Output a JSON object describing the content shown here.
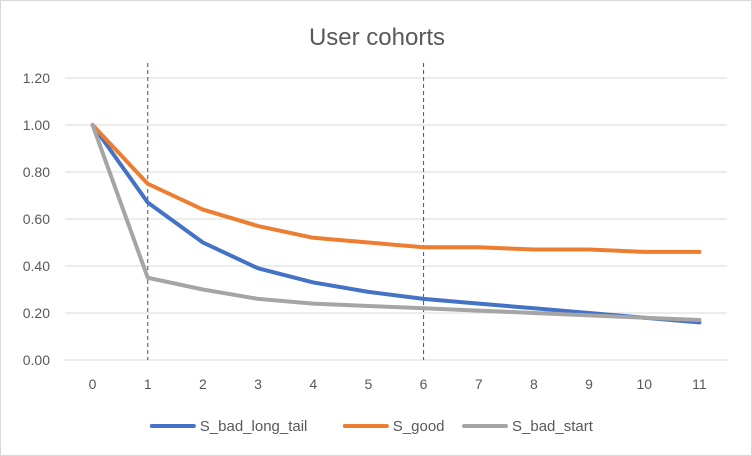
{
  "chart_data": {
    "type": "line",
    "title": "User cohorts",
    "xlabel": "",
    "ylabel": "",
    "x": [
      0,
      1,
      2,
      3,
      4,
      5,
      6,
      7,
      8,
      9,
      10,
      11
    ],
    "ylim": [
      0,
      1.2
    ],
    "yticks": [
      "0.00",
      "0.20",
      "0.40",
      "0.60",
      "0.80",
      "1.00",
      "1.20"
    ],
    "xticks": [
      "0",
      "1",
      "2",
      "3",
      "4",
      "5",
      "6",
      "7",
      "8",
      "9",
      "10",
      "11"
    ],
    "grid": true,
    "legend_position": "bottom",
    "reference_lines_x": [
      1,
      6
    ],
    "series": [
      {
        "name": "S_bad_long_tail",
        "color": "#4472C4",
        "values": [
          1.0,
          0.67,
          0.5,
          0.39,
          0.33,
          0.29,
          0.26,
          0.24,
          0.22,
          0.2,
          0.18,
          0.16
        ]
      },
      {
        "name": "S_good",
        "color": "#ED7D31",
        "values": [
          1.0,
          0.75,
          0.64,
          0.57,
          0.52,
          0.5,
          0.48,
          0.48,
          0.47,
          0.47,
          0.46,
          0.46
        ]
      },
      {
        "name": "S_bad_start",
        "color": "#A5A5A5",
        "values": [
          1.0,
          0.35,
          0.3,
          0.26,
          0.24,
          0.23,
          0.22,
          0.21,
          0.2,
          0.19,
          0.18,
          0.17
        ]
      }
    ]
  }
}
